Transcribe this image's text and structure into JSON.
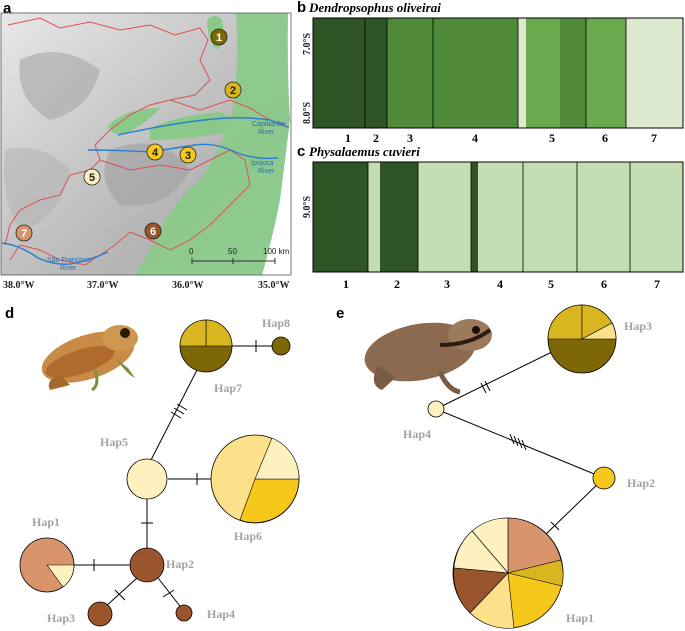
{
  "colors": {
    "c1": "#2f5426",
    "c2": "#3a6b2d",
    "c3": "#4e8a37",
    "c4": "#6aa94d",
    "c5": "#dce9cf",
    "c6": "#c3deb3",
    "map_green": "#8bc98a",
    "map_boundary": "#e05050",
    "river": "#2a7fd0",
    "hap_olive": "#7d6707",
    "hap_gold": "#d9b520",
    "hap_yellow": "#f6c81b",
    "hap_lightyellow": "#fde18a",
    "hap_cream": "#fdf1bf",
    "hap_salmon": "#d8956b",
    "hap_brown": "#9b552c"
  },
  "panel_a": {
    "label": "a",
    "sites": [
      "1",
      "2",
      "3",
      "4",
      "5",
      "6",
      "7"
    ],
    "rivers": [
      "Capibaribe",
      "River",
      "Ipojuca",
      "River",
      "São Francisco",
      "River"
    ],
    "lat_labels": [
      "7.0°S",
      "8.0°S",
      "9.0°S"
    ],
    "lon_labels": [
      "38.0°W",
      "37.0°W",
      "36.0°W",
      "35.0°W"
    ],
    "scale": {
      "start": "0",
      "mid": "50",
      "end": "100 km"
    }
  },
  "panel_b": {
    "label": "b",
    "title": "Dendropsophus oliveirai",
    "pop_labels": [
      "1",
      "2",
      "3",
      "4",
      "5",
      "6",
      "7"
    ]
  },
  "panel_c": {
    "label": "c",
    "title": "Physalaemus cuvieri",
    "pop_labels": [
      "1",
      "2",
      "3",
      "4",
      "5",
      "6",
      "7"
    ]
  },
  "panel_d": {
    "label": "d",
    "haplotypes": [
      "Hap8",
      "Hap7",
      "Hap5",
      "Hap6",
      "Hap1",
      "Hap2",
      "Hap3",
      "Hap4"
    ]
  },
  "panel_e": {
    "label": "e",
    "haplotypes": [
      "Hap3",
      "Hap4",
      "Hap2",
      "Hap1"
    ]
  }
}
